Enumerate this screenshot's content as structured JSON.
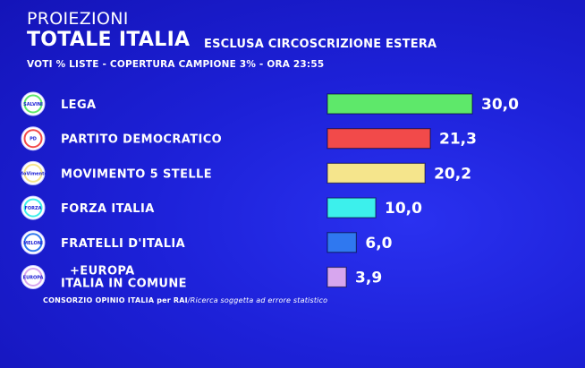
{
  "header": {
    "kicker": "PROIEZIONI",
    "title": "TOTALE ITALIA",
    "subtitle": "ESCLUSA CIRCOSCRIZIONE ESTERA",
    "info": "VOTI % LISTE - COPERTURA CAMPIONE 3% - ORA 23:55"
  },
  "footer": {
    "source": "CONSORZIO OPINIO ITALIA per RAI",
    "note": "/Ricerca soggetta ad errore statistico"
  },
  "chart_data": {
    "type": "bar",
    "orientation": "horizontal",
    "categories": [
      "LEGA",
      "PARTITO DEMOCRATICO",
      "MOVIMENTO 5 STELLE",
      "FORZA ITALIA",
      "FRATELLI D'ITALIA",
      "+EUROPA\nITALIA IN COMUNE"
    ],
    "values": [
      30.0,
      21.3,
      20.2,
      10.0,
      6.0,
      3.9
    ],
    "value_labels": [
      "30,0",
      "21,3",
      "20,2",
      "10,0",
      "6,0",
      "3,9"
    ],
    "colors": [
      "#5ee86a",
      "#f24a4a",
      "#f5e58c",
      "#3cf0ec",
      "#2f78f0",
      "#d7a6ee"
    ],
    "logo_icons": [
      "lega-logo-icon",
      "pd-logo-icon",
      "m5s-logo-icon",
      "forza-italia-logo-icon",
      "fratelli-italia-logo-icon",
      "europa-logo-icon"
    ],
    "logo_texts": [
      "SALVINI",
      "PD",
      "MoVimento",
      "FORZA",
      "MELONI",
      "EUROPA"
    ],
    "grid": false,
    "legend": "none"
  }
}
